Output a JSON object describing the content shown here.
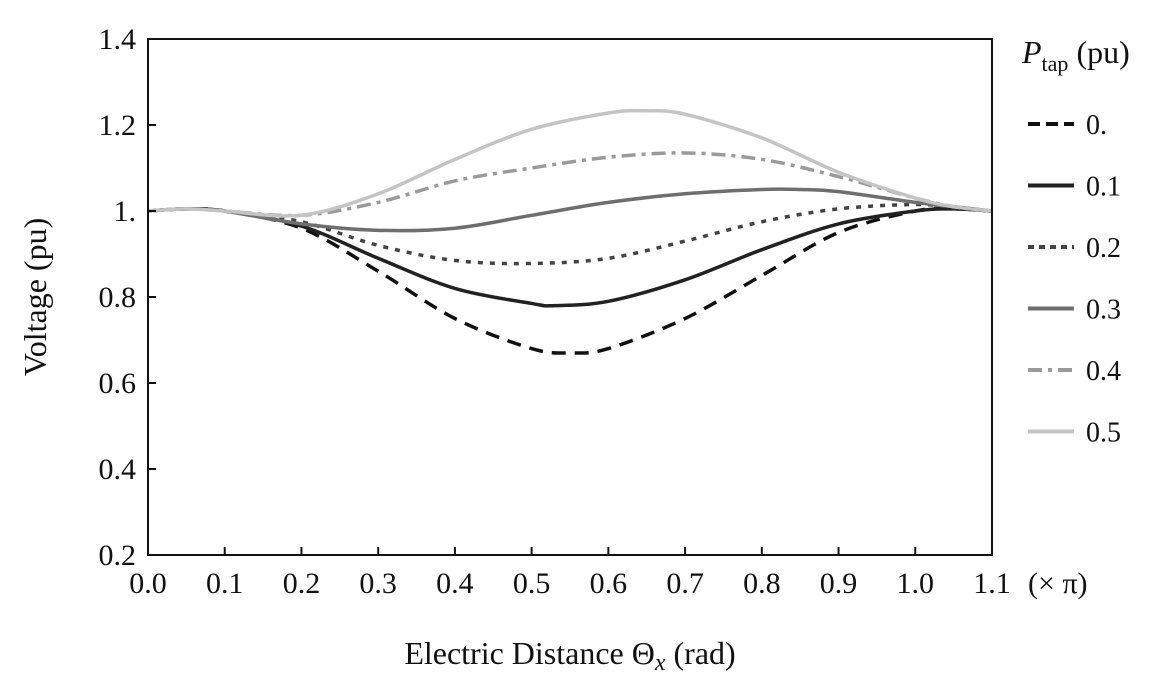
{
  "chart_data": {
    "type": "line",
    "xlabel": {
      "main": "Electric Distance ",
      "symbol": "Θ",
      "sub": "x",
      "unit": " (rad)"
    },
    "x_unit": "(× π)",
    "ylabel": "Voltage (pu)",
    "xlim": [
      0.0,
      1.1
    ],
    "ylim": [
      0.2,
      1.4
    ],
    "x_ticks": [
      "0.0",
      "0.1",
      "0.2",
      "0.3",
      "0.4",
      "0.5",
      "0.6",
      "0.7",
      "0.8",
      "0.9",
      "1.0",
      "1.1"
    ],
    "y_ticks": [
      "0.2",
      "0.4",
      "0.6",
      "0.8",
      "1.",
      "1.2",
      "1.4"
    ],
    "grid": false,
    "legend": {
      "title_main": "P",
      "title_sub": "tap",
      "title_unit": " (pu)",
      "placement": "right"
    },
    "series": [
      {
        "name": "0.",
        "color": "#111111",
        "dash": "dashed",
        "x": [
          0.0,
          0.05,
          0.1,
          0.2,
          0.3,
          0.4,
          0.5,
          0.55,
          0.6,
          0.7,
          0.8,
          0.9,
          1.0,
          1.05,
          1.1
        ],
        "y": [
          1.0,
          1.005,
          1.0,
          0.96,
          0.86,
          0.75,
          0.68,
          0.67,
          0.68,
          0.75,
          0.85,
          0.95,
          1.0,
          1.005,
          1.0
        ]
      },
      {
        "name": "0.1",
        "color": "#222222",
        "dash": "solid",
        "x": [
          0.0,
          0.05,
          0.1,
          0.2,
          0.3,
          0.4,
          0.5,
          0.53,
          0.6,
          0.7,
          0.8,
          0.9,
          1.0,
          1.05,
          1.1
        ],
        "y": [
          1.0,
          1.005,
          1.0,
          0.965,
          0.89,
          0.82,
          0.785,
          0.78,
          0.79,
          0.84,
          0.91,
          0.97,
          1.0,
          1.005,
          1.0
        ]
      },
      {
        "name": "0.2",
        "color": "#444444",
        "dash": "dotted",
        "x": [
          0.0,
          0.05,
          0.1,
          0.2,
          0.3,
          0.4,
          0.5,
          0.6,
          0.7,
          0.8,
          0.9,
          1.0,
          1.05,
          1.1
        ],
        "y": [
          1.0,
          1.005,
          1.0,
          0.975,
          0.92,
          0.885,
          0.878,
          0.89,
          0.93,
          0.975,
          1.005,
          1.015,
          1.008,
          1.0
        ]
      },
      {
        "name": "0.3",
        "color": "#6e6e6e",
        "dash": "solid",
        "x": [
          0.0,
          0.05,
          0.1,
          0.2,
          0.3,
          0.4,
          0.5,
          0.6,
          0.7,
          0.8,
          0.85,
          0.9,
          1.0,
          1.05,
          1.1
        ],
        "y": [
          1.0,
          1.005,
          1.0,
          0.97,
          0.955,
          0.96,
          0.99,
          1.02,
          1.04,
          1.05,
          1.05,
          1.045,
          1.02,
          1.01,
          1.0
        ]
      },
      {
        "name": "0.4",
        "color": "#9a9a9a",
        "dash": "dashdot",
        "x": [
          0.0,
          0.05,
          0.1,
          0.2,
          0.3,
          0.4,
          0.5,
          0.6,
          0.7,
          0.8,
          0.9,
          1.0,
          1.05,
          1.1
        ],
        "y": [
          1.0,
          1.005,
          1.0,
          0.99,
          1.02,
          1.07,
          1.1,
          1.125,
          1.135,
          1.12,
          1.08,
          1.03,
          1.01,
          1.0
        ]
      },
      {
        "name": "0.5",
        "color": "#c4c4c4",
        "dash": "solid",
        "x": [
          0.0,
          0.05,
          0.1,
          0.2,
          0.3,
          0.4,
          0.5,
          0.6,
          0.65,
          0.7,
          0.8,
          0.9,
          1.0,
          1.05,
          1.1
        ],
        "y": [
          1.0,
          1.005,
          1.0,
          0.99,
          1.04,
          1.12,
          1.19,
          1.228,
          1.233,
          1.225,
          1.17,
          1.09,
          1.03,
          1.01,
          1.0
        ]
      }
    ]
  }
}
